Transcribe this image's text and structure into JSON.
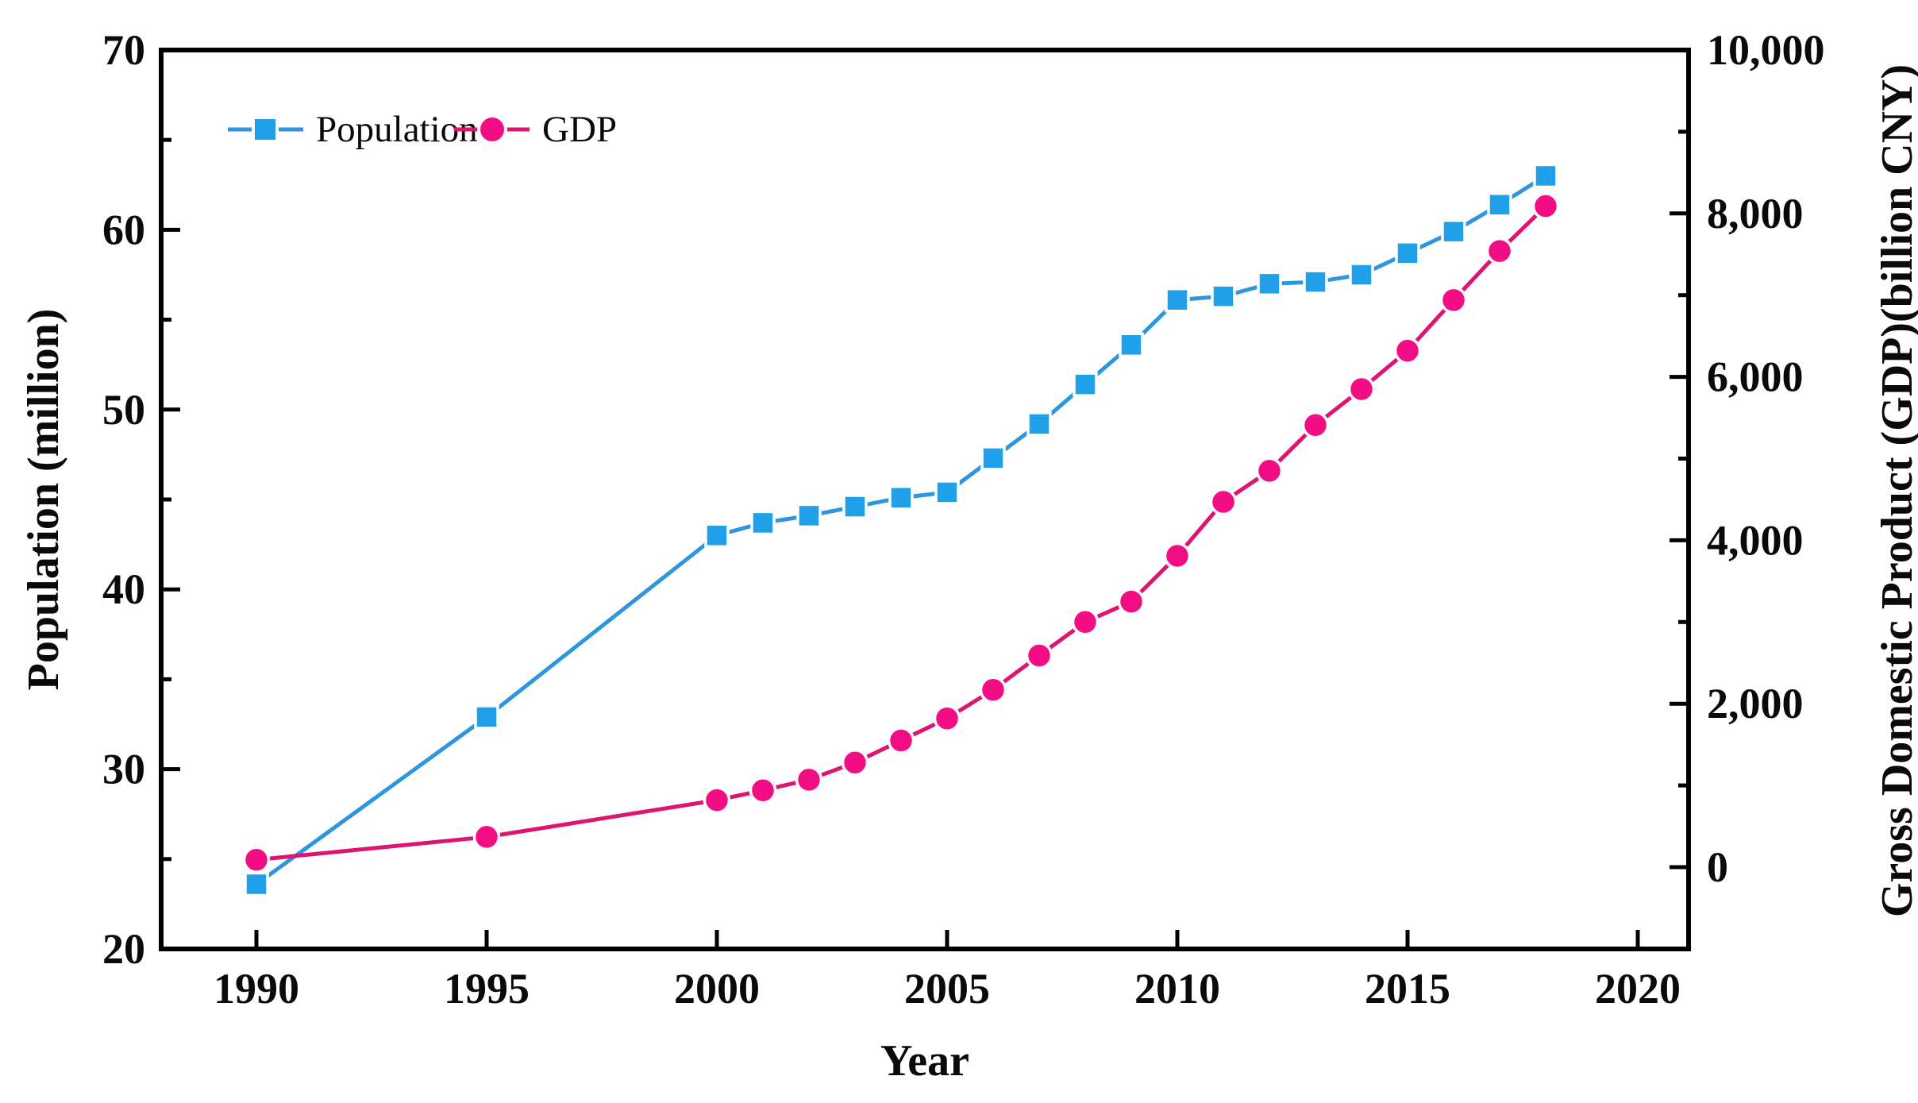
{
  "chart_data": {
    "type": "line",
    "title": "",
    "x": [
      1990,
      1995,
      2000,
      2001,
      2002,
      2003,
      2004,
      2005,
      2006,
      2007,
      2008,
      2009,
      2010,
      2011,
      2012,
      2013,
      2014,
      2015,
      2016,
      2017,
      2018
    ],
    "series": [
      {
        "name": "Population",
        "yaxis": "left",
        "marker": "square",
        "values": [
          23.6,
          32.9,
          43.0,
          43.7,
          44.1,
          44.6,
          45.1,
          45.4,
          47.3,
          49.2,
          51.4,
          53.6,
          56.1,
          56.3,
          57.0,
          57.1,
          57.5,
          58.7,
          59.9,
          61.4,
          63.0
        ]
      },
      {
        "name": "GDP",
        "yaxis": "right",
        "marker": "circle",
        "values": [
          90,
          370,
          820,
          940,
          1070,
          1280,
          1550,
          1820,
          2170,
          2590,
          3000,
          3250,
          3810,
          4470,
          4850,
          5410,
          5850,
          6320,
          6940,
          7540,
          8090
        ]
      }
    ],
    "xlabel": "Year",
    "ylabel_left": "Population (million)",
    "ylabel_right": "Gross Domestic Product (GDP)(billion CNY)",
    "ylim_left": [
      20,
      70
    ],
    "ylim_right": [
      0,
      10000
    ],
    "xlim": [
      1988,
      2021
    ],
    "grid": false,
    "legend_position": "top-left",
    "xticks": {
      "values": [
        1990,
        1995,
        2000,
        2005,
        2010,
        2015,
        2020
      ],
      "labels": [
        "1990",
        "1995",
        "2000",
        "2005",
        "2010",
        "2015",
        "2020"
      ]
    },
    "yticks_left": {
      "values": [
        20,
        30,
        40,
        50,
        60,
        70
      ],
      "labels": [
        "20",
        "30",
        "40",
        "50",
        "60",
        "70"
      ],
      "minor": [
        25,
        35,
        45,
        55,
        65
      ]
    },
    "yticks_right": {
      "values": [
        0,
        2000,
        4000,
        6000,
        8000,
        10000
      ],
      "labels": [
        "0",
        "2,000",
        "4,000",
        "6,000",
        "8,000",
        "10,000"
      ],
      "minor": [
        1000,
        3000,
        5000,
        7000,
        9000
      ]
    },
    "legend": {
      "items": [
        {
          "label": "Population"
        },
        {
          "label": "GDP"
        }
      ]
    },
    "colors": {
      "population_line": "#2E96DE",
      "population_marker": "#1FA0E8",
      "gdp_line": "#DC1472",
      "gdp_marker": "#F20D84",
      "frame": "#000000",
      "text": "#0a0a0a",
      "background": "#ffffff"
    }
  }
}
